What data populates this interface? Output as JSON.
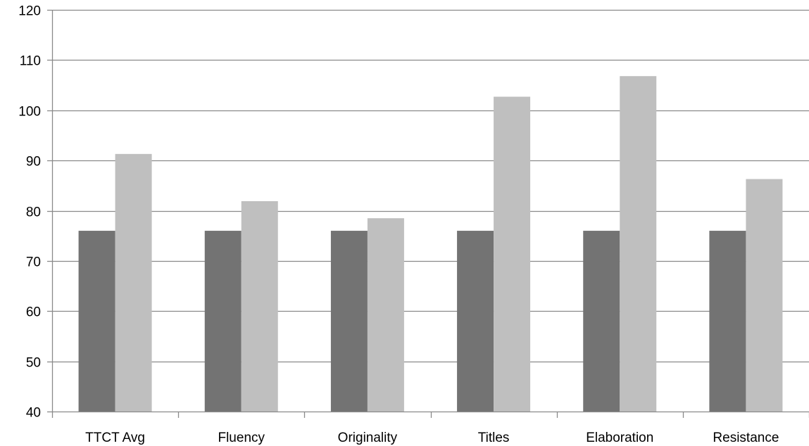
{
  "chart_data": {
    "type": "bar",
    "title": "",
    "xlabel": "",
    "ylabel": "",
    "categories": [
      "TTCT Avg",
      "Fluency",
      "Originality",
      "Titles",
      "Elaboration",
      "Resistance"
    ],
    "series": [
      {
        "values": [
          76,
          76,
          76,
          76,
          76,
          76
        ],
        "color": "#737373"
      },
      {
        "values": [
          91.3,
          81.9,
          78.5,
          102.7,
          106.8,
          86.3
        ],
        "color": "#bfbfbf"
      }
    ],
    "ylim": [
      40,
      120
    ],
    "yticks": [
      40,
      50,
      60,
      70,
      80,
      90,
      100,
      110,
      120
    ],
    "grid": true,
    "legend": "none"
  }
}
